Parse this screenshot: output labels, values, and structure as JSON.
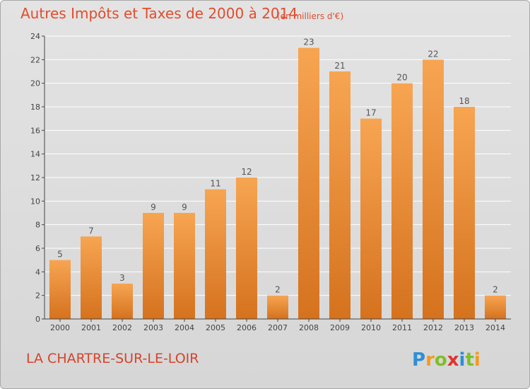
{
  "header": {
    "title": "Autres Impôts et Taxes de 2000 à 2014",
    "subtitle": "(en milliers d'€)"
  },
  "footer": {
    "commune": "LA CHARTRE-SUR-LE-LOIR",
    "logo_text": "Proxiti"
  },
  "colors": {
    "bar_top": "#f7a552",
    "bar_bottom": "#d5721e",
    "title": "#e34c2c",
    "axis": "#444444",
    "grid": "#ffffff"
  },
  "chart_data": {
    "type": "bar",
    "title": "Autres Impôts et Taxes de 2000 à 2014",
    "subtitle": "(en milliers d'€)",
    "categories": [
      "2000",
      "2001",
      "2002",
      "2003",
      "2004",
      "2005",
      "2006",
      "2007",
      "2008",
      "2009",
      "2010",
      "2011",
      "2012",
      "2013",
      "2014"
    ],
    "values": [
      5,
      7,
      3,
      9,
      9,
      11,
      12,
      2,
      23,
      21,
      17,
      20,
      22,
      18,
      2
    ],
    "ylim": [
      0,
      24
    ],
    "yticks": [
      0,
      2,
      4,
      6,
      8,
      10,
      12,
      14,
      16,
      18,
      20,
      22,
      24
    ],
    "grid": true,
    "data_labels": true
  }
}
